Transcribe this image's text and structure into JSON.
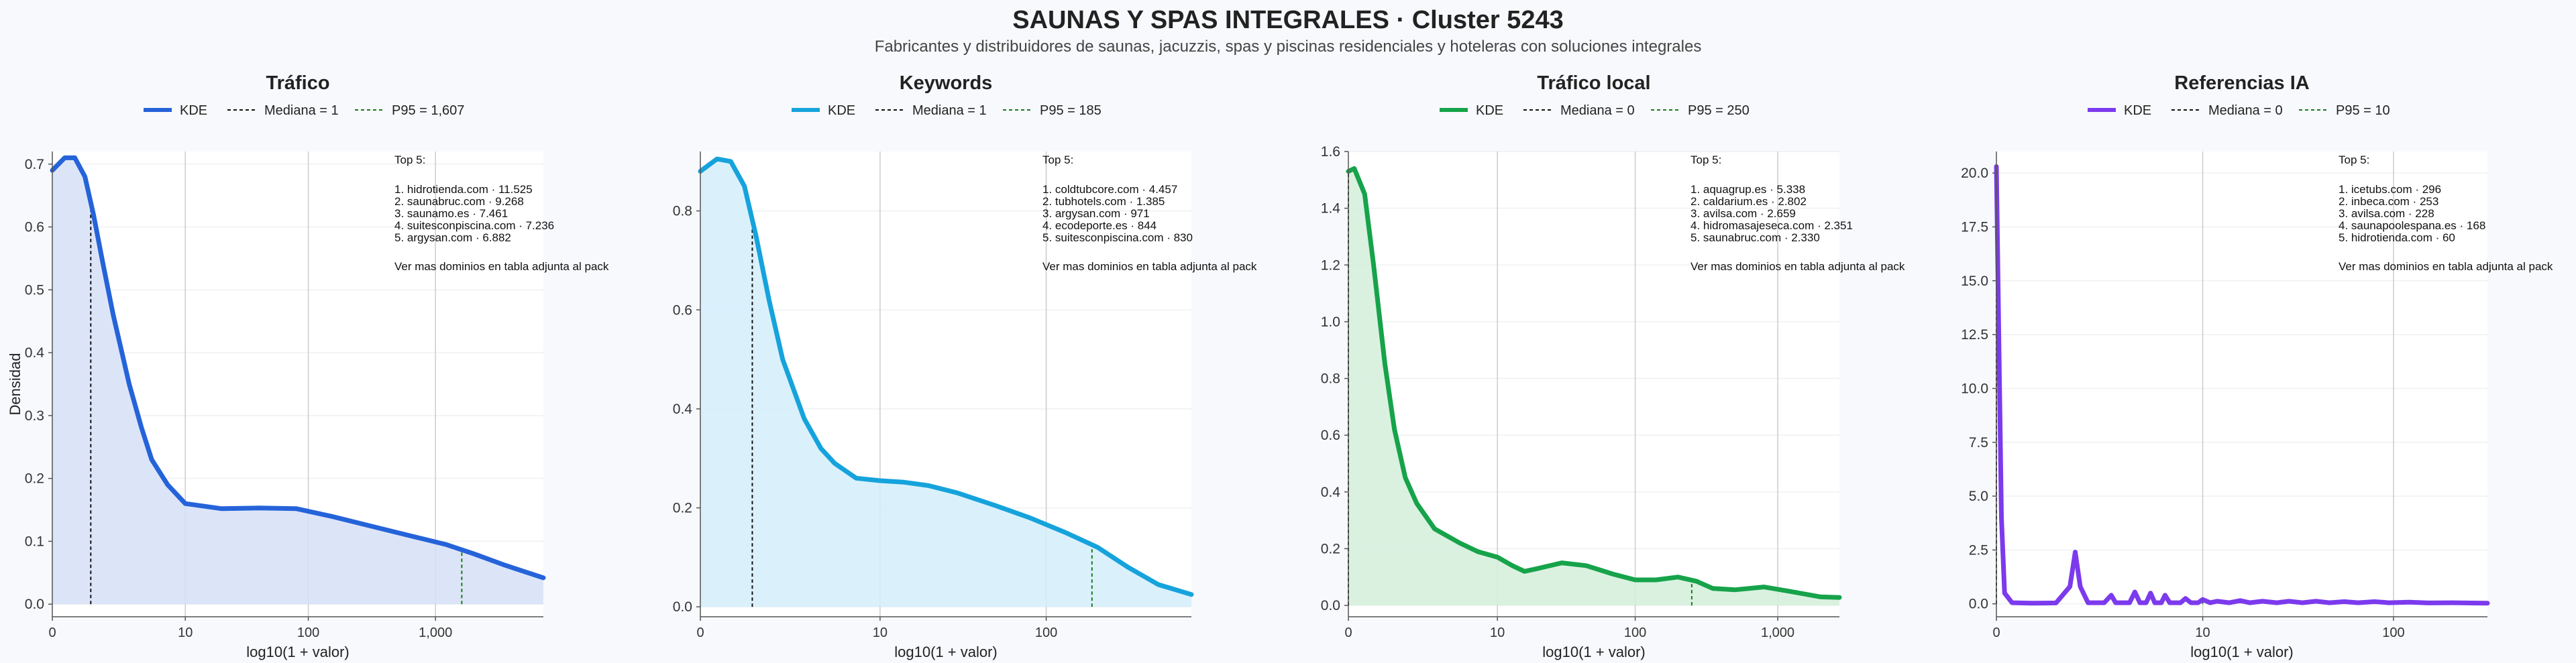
{
  "figure": {
    "title": "SAUNAS Y SPAS INTEGRALES · Cluster 5243",
    "subtitle": "Fabricantes y distribuidores de saunas, jacuzzis, spas y piscinas residenciales y hoteleras con soluciones integrales",
    "background": "#f7f9fc"
  },
  "chart_data": [
    {
      "type": "area",
      "title": "Tráfico",
      "xlabel": "log10(1 + valor)",
      "ylabel": "Densidad",
      "color": "#2563d9",
      "fill": "#d6e1f7",
      "x_scale": "log1p",
      "xlim": [
        0,
        7000
      ],
      "ylim": [
        -0.02,
        0.72
      ],
      "xticks": [
        {
          "v": 0,
          "label": "0"
        },
        {
          "v": 10,
          "label": "10"
        },
        {
          "v": 100,
          "label": "100"
        },
        {
          "v": 1000,
          "label": "1,000"
        }
      ],
      "yticks": [
        {
          "v": 0,
          "label": "0.0"
        },
        {
          "v": 0.1,
          "label": "0.1"
        },
        {
          "v": 0.2,
          "label": "0.2"
        },
        {
          "v": 0.3,
          "label": "0.3"
        },
        {
          "v": 0.4,
          "label": "0.4"
        },
        {
          "v": 0.5,
          "label": "0.5"
        },
        {
          "v": 0.6,
          "label": "0.6"
        },
        {
          "v": 0.7,
          "label": "0.7"
        }
      ],
      "vgrid": [
        10,
        100,
        1000
      ],
      "curve": [
        [
          0,
          0.69
        ],
        [
          0.25,
          0.71
        ],
        [
          0.5,
          0.71
        ],
        [
          0.8,
          0.68
        ],
        [
          1.1,
          0.62
        ],
        [
          1.5,
          0.54
        ],
        [
          2,
          0.46
        ],
        [
          3,
          0.35
        ],
        [
          4,
          0.28
        ],
        [
          5,
          0.23
        ],
        [
          7,
          0.19
        ],
        [
          10,
          0.16
        ],
        [
          20,
          0.152
        ],
        [
          40,
          0.153
        ],
        [
          80,
          0.152
        ],
        [
          150,
          0.14
        ],
        [
          300,
          0.125
        ],
        [
          600,
          0.11
        ],
        [
          1200,
          0.095
        ],
        [
          2000,
          0.08
        ],
        [
          3500,
          0.062
        ],
        [
          7000,
          0.042
        ]
      ],
      "median": 1,
      "p95": 1607,
      "legend": {
        "kde": "KDE",
        "median": "Mediana = 1",
        "p95": "P95 = 1,607"
      },
      "top": {
        "heading": "Top 5:",
        "items": [
          "1. hidrotienda.com · 11.525",
          "2. saunabruc.com · 9.268",
          "3. saunamo.es · 7.461",
          "4. suitesconpiscina.com · 7.236",
          "5. argysan.com · 6.882"
        ],
        "footer": "Ver mas dominios en tabla adjunta al pack"
      }
    },
    {
      "type": "area",
      "title": "Keywords",
      "xlabel": "log10(1 + valor)",
      "ylabel": "",
      "color": "#16a3dc",
      "fill": "#d3eefb",
      "x_scale": "log1p",
      "xlim": [
        0,
        700
      ],
      "ylim": [
        -0.02,
        0.92
      ],
      "xticks": [
        {
          "v": 0,
          "label": "0"
        },
        {
          "v": 10,
          "label": "10"
        },
        {
          "v": 100,
          "label": "100"
        }
      ],
      "yticks": [
        {
          "v": 0,
          "label": "0.0"
        },
        {
          "v": 0.2,
          "label": "0.2"
        },
        {
          "v": 0.4,
          "label": "0.4"
        },
        {
          "v": 0.6,
          "label": "0.6"
        },
        {
          "v": 0.8,
          "label": "0.8"
        }
      ],
      "vgrid": [
        10,
        100
      ],
      "curve": [
        [
          0,
          0.88
        ],
        [
          0.25,
          0.905
        ],
        [
          0.5,
          0.9
        ],
        [
          0.8,
          0.85
        ],
        [
          1.1,
          0.75
        ],
        [
          1.5,
          0.62
        ],
        [
          2,
          0.5
        ],
        [
          3,
          0.38
        ],
        [
          4,
          0.32
        ],
        [
          5,
          0.29
        ],
        [
          7,
          0.26
        ],
        [
          10,
          0.255
        ],
        [
          14,
          0.252
        ],
        [
          20,
          0.245
        ],
        [
          30,
          0.23
        ],
        [
          50,
          0.205
        ],
        [
          80,
          0.18
        ],
        [
          130,
          0.15
        ],
        [
          200,
          0.12
        ],
        [
          300,
          0.08
        ],
        [
          450,
          0.045
        ],
        [
          700,
          0.025
        ]
      ],
      "median": 1,
      "p95": 185,
      "legend": {
        "kde": "KDE",
        "median": "Mediana = 1",
        "p95": "P95 = 185"
      },
      "top": {
        "heading": "Top 5:",
        "items": [
          "1. coldtubcore.com · 4.457",
          "2. tubhotels.com · 1.385",
          "3. argysan.com · 971",
          "4. ecodeporte.es · 844",
          "5. suitesconpiscina.com · 830"
        ],
        "footer": "Ver mas dominios en tabla adjunta al pack"
      }
    },
    {
      "type": "area",
      "title": "Tráfico local",
      "xlabel": "log10(1 + valor)",
      "ylabel": "",
      "color": "#16a34a",
      "fill": "#d4eedb",
      "x_scale": "log1p",
      "xlim": [
        0,
        2700
      ],
      "ylim": [
        -0.04,
        1.6
      ],
      "xticks": [
        {
          "v": 0,
          "label": "0"
        },
        {
          "v": 10,
          "label": "10"
        },
        {
          "v": 100,
          "label": "100"
        },
        {
          "v": 1000,
          "label": "1,000"
        }
      ],
      "yticks": [
        {
          "v": 0,
          "label": "0.0"
        },
        {
          "v": 0.2,
          "label": "0.2"
        },
        {
          "v": 0.4,
          "label": "0.4"
        },
        {
          "v": 0.6,
          "label": "0.6"
        },
        {
          "v": 0.8,
          "label": "0.8"
        },
        {
          "v": 1,
          "label": "1.0"
        },
        {
          "v": 1.2,
          "label": "1.2"
        },
        {
          "v": 1.4,
          "label": "1.4"
        },
        {
          "v": 1.6,
          "label": "1.6"
        }
      ],
      "vgrid": [
        10,
        100,
        1000
      ],
      "curve": [
        [
          0,
          1.53
        ],
        [
          0.1,
          1.54
        ],
        [
          0.3,
          1.45
        ],
        [
          0.5,
          1.2
        ],
        [
          0.8,
          0.85
        ],
        [
          1.1,
          0.62
        ],
        [
          1.5,
          0.45
        ],
        [
          2,
          0.36
        ],
        [
          3,
          0.27
        ],
        [
          5,
          0.22
        ],
        [
          7,
          0.19
        ],
        [
          10,
          0.17
        ],
        [
          13,
          0.14
        ],
        [
          16,
          0.12
        ],
        [
          20,
          0.13
        ],
        [
          30,
          0.15
        ],
        [
          45,
          0.14
        ],
        [
          70,
          0.11
        ],
        [
          100,
          0.09
        ],
        [
          140,
          0.09
        ],
        [
          200,
          0.1
        ],
        [
          270,
          0.085
        ],
        [
          350,
          0.06
        ],
        [
          500,
          0.055
        ],
        [
          800,
          0.065
        ],
        [
          1200,
          0.05
        ],
        [
          2000,
          0.03
        ],
        [
          2700,
          0.028
        ]
      ],
      "median": 0,
      "p95": 250,
      "legend": {
        "kde": "KDE",
        "median": "Mediana = 0",
        "p95": "P95 = 250"
      },
      "top": {
        "heading": "Top 5:",
        "items": [
          "1. aquagrup.es · 5.338",
          "2. caldarium.es · 2.802",
          "3. avilsa.com · 2.659",
          "4. hidromasajeseca.com · 2.351",
          "5. saunabruc.com · 2.330"
        ],
        "footer": "Ver mas dominios en tabla adjunta al pack"
      }
    },
    {
      "type": "line",
      "title": "Referencias IA",
      "xlabel": "log10(1 + valor)",
      "ylabel": "",
      "color": "#7c3aed",
      "fill": "",
      "x_scale": "log1p",
      "xlim": [
        0,
        300
      ],
      "ylim": [
        -0.6,
        21
      ],
      "xticks": [
        {
          "v": 0,
          "label": "0"
        },
        {
          "v": 10,
          "label": "10"
        },
        {
          "v": 100,
          "label": "100"
        }
      ],
      "yticks": [
        {
          "v": 0,
          "label": "0.0"
        },
        {
          "v": 2.5,
          "label": "2.5"
        },
        {
          "v": 5,
          "label": "5.0"
        },
        {
          "v": 7.5,
          "label": "7.5"
        },
        {
          "v": 10,
          "label": "10.0"
        },
        {
          "v": 12.5,
          "label": "12.5"
        },
        {
          "v": 15,
          "label": "15.0"
        },
        {
          "v": 17.5,
          "label": "17.5"
        },
        {
          "v": 20,
          "label": "20.0"
        }
      ],
      "vgrid": [
        10,
        100
      ],
      "curve": [
        [
          0,
          20.3
        ],
        [
          0.03,
          12
        ],
        [
          0.06,
          4
        ],
        [
          0.1,
          0.5
        ],
        [
          0.2,
          0.05
        ],
        [
          0.5,
          0.03
        ],
        [
          1.0,
          0.04
        ],
        [
          1.35,
          0.8
        ],
        [
          1.5,
          2.4
        ],
        [
          1.65,
          0.8
        ],
        [
          1.9,
          0.05
        ],
        [
          2.5,
          0.05
        ],
        [
          2.8,
          0.4
        ],
        [
          3.0,
          0.05
        ],
        [
          3.7,
          0.05
        ],
        [
          4.0,
          0.55
        ],
        [
          4.3,
          0.05
        ],
        [
          4.7,
          0.05
        ],
        [
          5.0,
          0.5
        ],
        [
          5.3,
          0.05
        ],
        [
          5.8,
          0.05
        ],
        [
          6.1,
          0.4
        ],
        [
          6.5,
          0.05
        ],
        [
          7.5,
          0.05
        ],
        [
          8,
          0.25
        ],
        [
          8.6,
          0.05
        ],
        [
          9.4,
          0.05
        ],
        [
          10,
          0.2
        ],
        [
          11,
          0.05
        ],
        [
          12,
          0.12
        ],
        [
          14,
          0.05
        ],
        [
          16,
          0.15
        ],
        [
          18,
          0.05
        ],
        [
          21,
          0.12
        ],
        [
          25,
          0.05
        ],
        [
          29,
          0.12
        ],
        [
          34,
          0.05
        ],
        [
          40,
          0.12
        ],
        [
          47,
          0.05
        ],
        [
          56,
          0.1
        ],
        [
          66,
          0.05
        ],
        [
          80,
          0.1
        ],
        [
          95,
          0.05
        ],
        [
          120,
          0.08
        ],
        [
          150,
          0.04
        ],
        [
          200,
          0.05
        ],
        [
          300,
          0.03
        ]
      ],
      "median": 0,
      "p95": 10,
      "legend": {
        "kde": "KDE",
        "median": "Mediana = 0",
        "p95": "P95 = 10"
      },
      "top": {
        "heading": "Top 5:",
        "items": [
          "1. icetubs.com · 296",
          "2. inbeca.com · 253",
          "3. avilsa.com · 228",
          "4. saunapoolespana.es · 168",
          "5. hidrotienda.com · 60"
        ],
        "footer": "Ver mas dominios en tabla adjunta al pack"
      }
    }
  ]
}
